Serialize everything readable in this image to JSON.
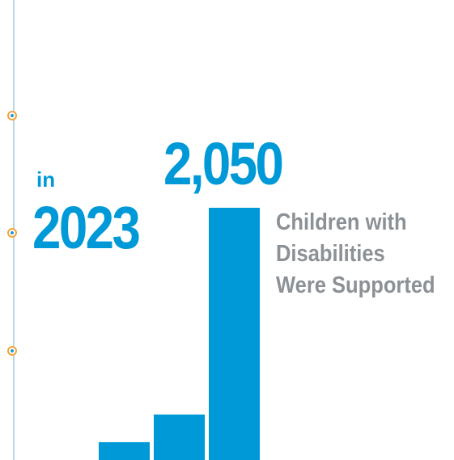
{
  "headline": {
    "prefix": "in",
    "year": "2023",
    "value": "2,050",
    "caption_lines": [
      "Children with",
      "Disabilities",
      "Were Supported"
    ]
  },
  "colors": {
    "accent": "#0099d8",
    "caption": "#8c9196",
    "timeline": "#b9d6e3",
    "marker": "#f2a33a"
  },
  "chart_data": {
    "type": "bar",
    "categories": [
      "",
      "",
      ""
    ],
    "values": [
      145,
      370,
      2050
    ],
    "ylim": [
      0,
      2050
    ],
    "grid": false,
    "xlabel": "",
    "ylabel": ""
  }
}
